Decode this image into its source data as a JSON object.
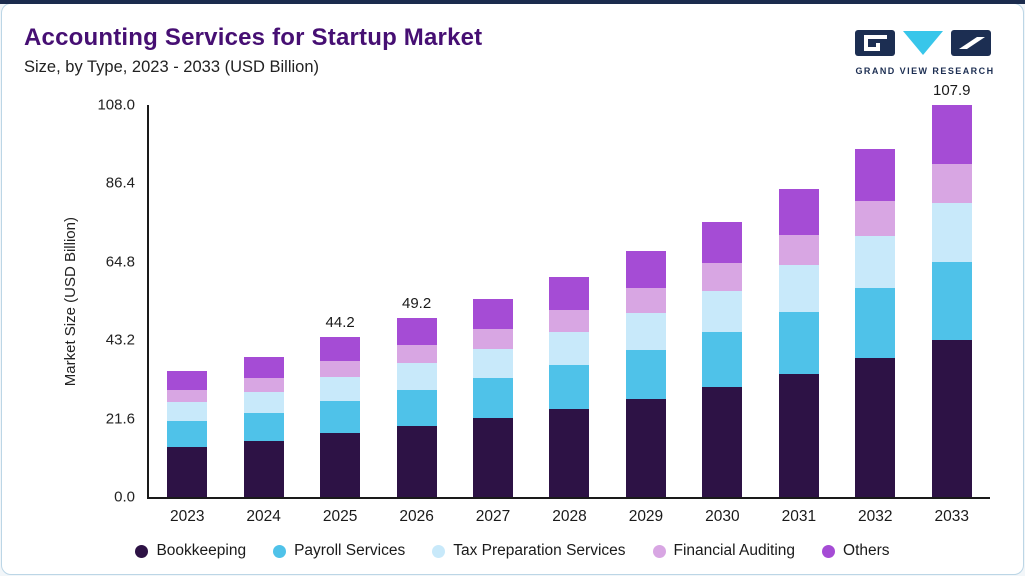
{
  "theme": {
    "top_bar": "#1b2b4d",
    "card_border": "#bcd6e6",
    "title_color": "#460f73",
    "logo_navy": "#1c2e52",
    "logo_cyan": "#38c6ea",
    "axis_color": "#1a1a1a"
  },
  "header": {
    "title": "Accounting Services for Startup Market",
    "subtitle": "Size, by Type, 2023 - 2033 (USD Billion)",
    "logo_text": "GRAND VIEW RESEARCH"
  },
  "chart_data": {
    "type": "bar",
    "stacked": true,
    "title": "Accounting Services for Startup Market Size, by Type, 2023 - 2033 (USD Billion)",
    "xlabel": "",
    "ylabel": "Market Size (USD Billion)",
    "ylim": [
      0,
      108
    ],
    "yticks": [
      0,
      21.6,
      43.2,
      64.8,
      86.4,
      108
    ],
    "ytick_labels": [
      "0.0",
      "21.6",
      "43.2",
      "64.8",
      "86.4",
      "108.0"
    ],
    "grid": false,
    "legend_position": "bottom",
    "categories": [
      "2023",
      "2024",
      "2025",
      "2026",
      "2027",
      "2028",
      "2029",
      "2030",
      "2031",
      "2032",
      "2033"
    ],
    "series": [
      {
        "name": "Bookkeeping",
        "color": "#2d1245",
        "values": [
          13.9,
          15.5,
          17.7,
          19.7,
          21.8,
          24.2,
          27.1,
          30.3,
          34.0,
          38.4,
          43.2
        ]
      },
      {
        "name": "Payroll Services",
        "color": "#4fc2e9",
        "values": [
          7.0,
          7.7,
          8.8,
          9.8,
          10.9,
          12.1,
          13.5,
          15.2,
          17.0,
          19.2,
          21.6
        ]
      },
      {
        "name": "Tax Preparation Services",
        "color": "#c8e9fa",
        "values": [
          5.2,
          5.8,
          6.6,
          7.4,
          8.2,
          9.1,
          10.2,
          11.4,
          12.8,
          14.4,
          16.2
        ]
      },
      {
        "name": "Financial Auditing",
        "color": "#d8a6e3",
        "values": [
          3.5,
          3.9,
          4.4,
          4.9,
          5.5,
          6.1,
          6.8,
          7.6,
          8.5,
          9.6,
          10.8
        ]
      },
      {
        "name": "Others",
        "color": "#a54cd5",
        "values": [
          5.2,
          5.8,
          6.7,
          7.4,
          8.1,
          9.0,
          10.1,
          11.3,
          12.7,
          14.4,
          16.1
        ]
      }
    ],
    "totals": [
      34.8,
      38.7,
      44.2,
      49.2,
      54.5,
      60.5,
      67.7,
      75.8,
      85.0,
      96.0,
      107.9
    ],
    "bar_labels": [
      null,
      null,
      "44.2",
      "49.2",
      null,
      null,
      null,
      null,
      null,
      null,
      "107.9"
    ]
  }
}
